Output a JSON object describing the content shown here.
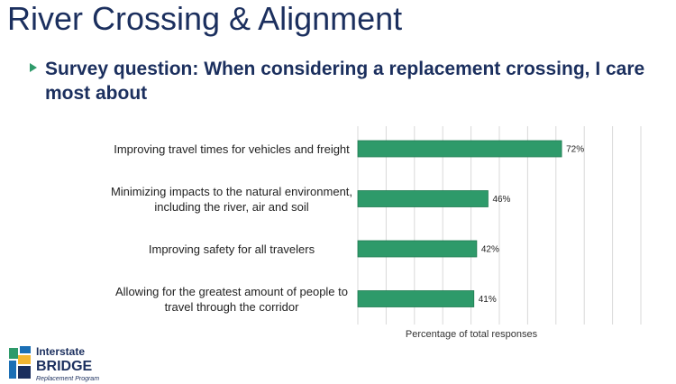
{
  "title": "River Crossing & Alignment",
  "bullet": "Survey question: When considering a replacement crossing, I care most about",
  "chart_data": {
    "type": "bar",
    "orientation": "horizontal",
    "categories": [
      "Improving travel times for vehicles and freight",
      "Minimizing impacts to the natural environment, including the river, air and soil",
      "Improving safety for all travelers",
      "Allowing for the greatest amount of people to travel through the corridor"
    ],
    "values": [
      72,
      46,
      42,
      41
    ],
    "value_labels": [
      "72%",
      "46%",
      "42%",
      "41%"
    ],
    "color": "#2e9a6a",
    "xlabel": "Percentage of total responses",
    "xlim": [
      0,
      100
    ],
    "xticks": [
      0,
      10,
      20,
      30,
      40,
      50,
      60,
      70,
      80,
      90,
      100
    ],
    "grid": true
  },
  "logo": {
    "line1": "Interstate",
    "line2": "BRIDGE",
    "line3": "Replacement Program"
  }
}
